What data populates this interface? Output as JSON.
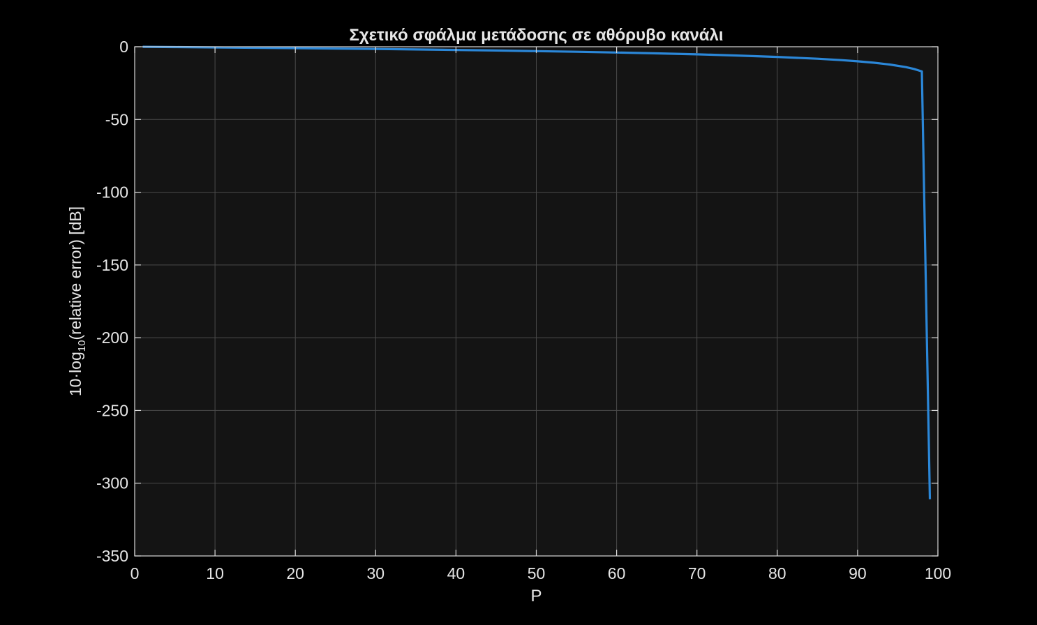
{
  "chart_data": {
    "type": "line",
    "title": "Σχετικό σφάλμα μετάδοσης σε αθόρυβο κανάλι",
    "xlabel": "P",
    "ylabel": {
      "prefix": "10·log",
      "subscript": "10",
      "suffix": "(relative  error)  [dB]"
    },
    "xlim": [
      0,
      100
    ],
    "ylim": [
      -350,
      0
    ],
    "x_ticks": [
      0,
      10,
      20,
      30,
      40,
      50,
      60,
      70,
      80,
      90,
      100
    ],
    "y_ticks": [
      0,
      -50,
      -100,
      -150,
      -200,
      -250,
      -300,
      -350
    ],
    "grid": true,
    "series": [
      {
        "color": "#2b87d8",
        "x": [
          1,
          5,
          10,
          15,
          20,
          25,
          30,
          35,
          40,
          45,
          50,
          55,
          60,
          65,
          70,
          75,
          80,
          85,
          88,
          90,
          92,
          94,
          96,
          97,
          98,
          99
        ],
        "y": [
          -0.04,
          -0.22,
          -0.46,
          -0.71,
          -0.97,
          -1.25,
          -1.55,
          -1.87,
          -2.22,
          -2.6,
          -3.01,
          -3.47,
          -3.98,
          -4.56,
          -5.23,
          -6.02,
          -6.99,
          -8.24,
          -9.21,
          -10.0,
          -10.97,
          -12.22,
          -13.98,
          -15.23,
          -16.99,
          -311.0
        ]
      }
    ],
    "colors": {
      "figure_background": "#000000",
      "axes_background": "#141414",
      "grid": "#4a4a4a",
      "axis": "#d9d9d9",
      "text": "#e6e6e6"
    }
  }
}
